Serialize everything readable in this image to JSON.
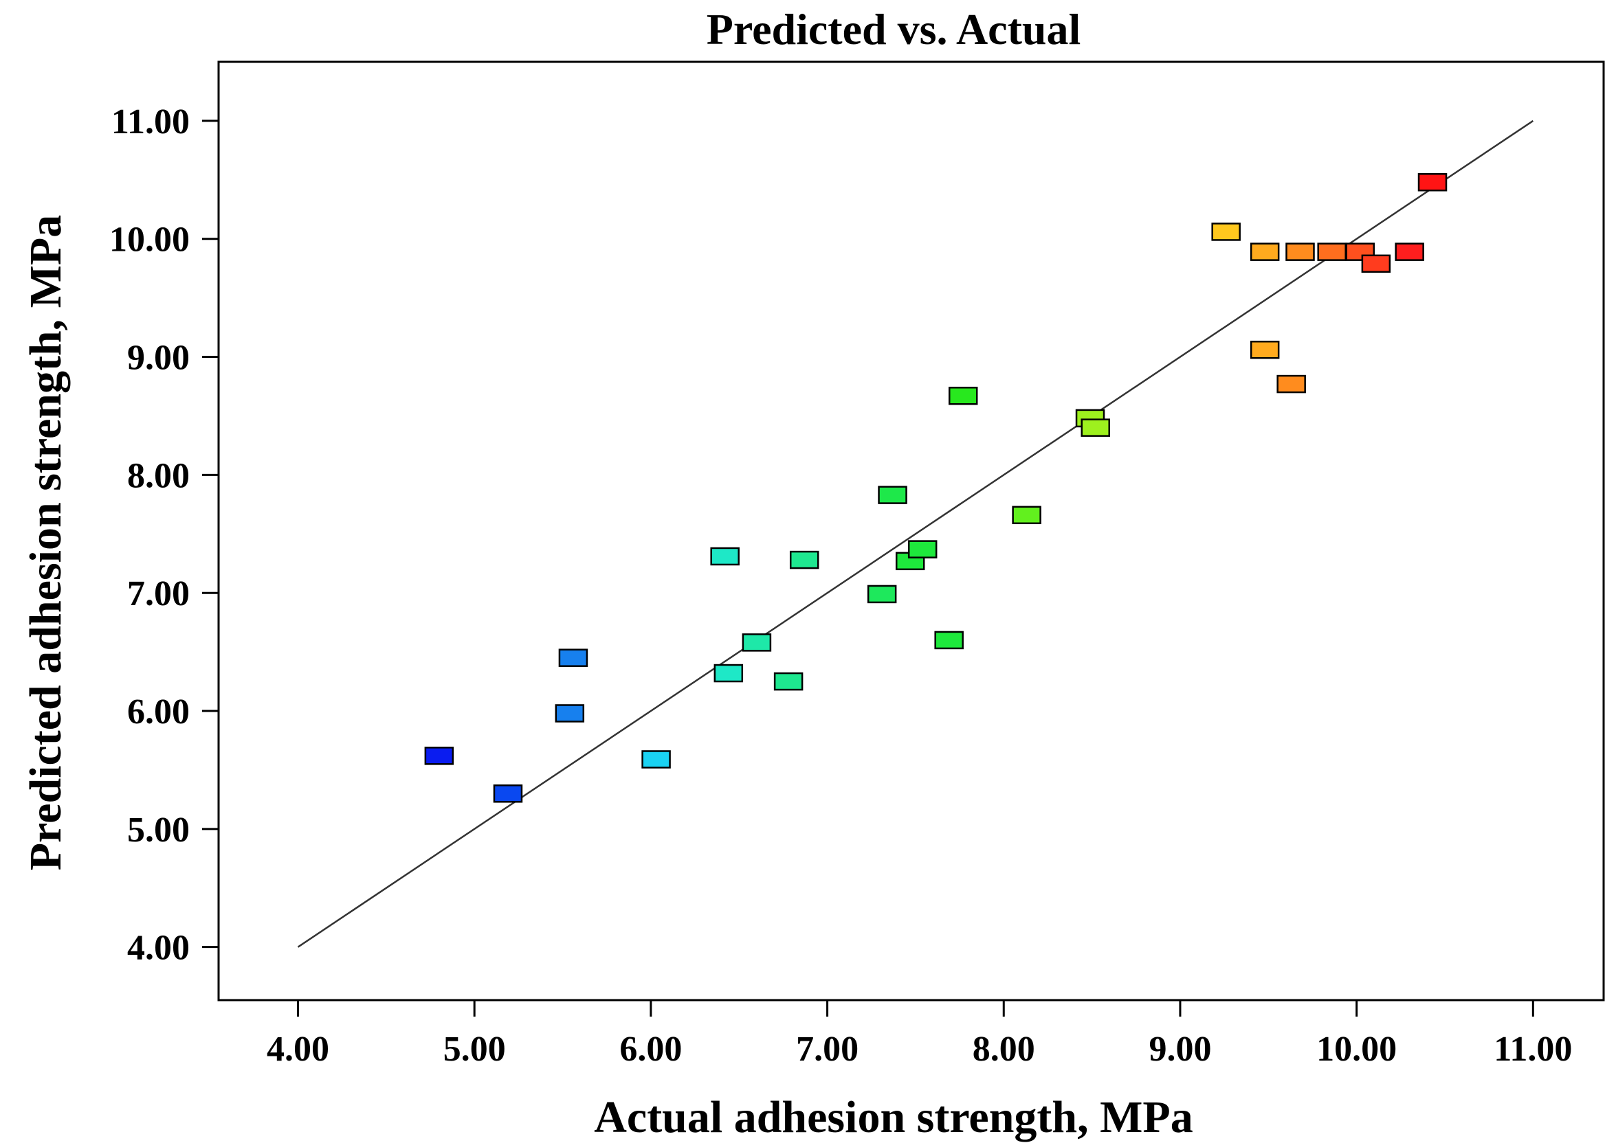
{
  "chart_data": {
    "type": "scatter",
    "title": "Predicted vs. Actual",
    "xlabel": "Actual adhesion strength, MPa",
    "ylabel": "Predicted adhesion strength, MPa",
    "xlim": [
      3.55,
      11.4
    ],
    "ylim": [
      3.55,
      11.5
    ],
    "xticks": [
      "4.00",
      "5.00",
      "6.00",
      "7.00",
      "8.00",
      "9.00",
      "10.00",
      "11.00"
    ],
    "yticks": [
      "4.00",
      "5.00",
      "6.00",
      "7.00",
      "8.00",
      "9.00",
      "10.00",
      "11.00"
    ],
    "reference_line": {
      "from": [
        4.0,
        4.0
      ],
      "to": [
        11.0,
        11.0
      ]
    },
    "points": [
      {
        "x": 4.8,
        "y": 5.62,
        "color": "#0a1cf0"
      },
      {
        "x": 5.19,
        "y": 5.3,
        "color": "#0a48f0"
      },
      {
        "x": 5.54,
        "y": 5.98,
        "color": "#1780ee"
      },
      {
        "x": 5.56,
        "y": 6.45,
        "color": "#1780ee"
      },
      {
        "x": 6.03,
        "y": 5.59,
        "color": "#1ad2f2"
      },
      {
        "x": 6.42,
        "y": 7.31,
        "color": "#1ee8c7"
      },
      {
        "x": 6.44,
        "y": 6.32,
        "color": "#1ee8c7"
      },
      {
        "x": 6.6,
        "y": 6.58,
        "color": "#1ee8a8"
      },
      {
        "x": 6.78,
        "y": 6.25,
        "color": "#1ee890"
      },
      {
        "x": 6.87,
        "y": 7.28,
        "color": "#1ee890"
      },
      {
        "x": 7.31,
        "y": 6.99,
        "color": "#1ee85c"
      },
      {
        "x": 7.37,
        "y": 7.83,
        "color": "#1ee84a"
      },
      {
        "x": 7.47,
        "y": 7.27,
        "color": "#1ee83c"
      },
      {
        "x": 7.54,
        "y": 7.37,
        "color": "#1ee83c"
      },
      {
        "x": 7.69,
        "y": 6.6,
        "color": "#1ee83c"
      },
      {
        "x": 7.77,
        "y": 8.67,
        "color": "#28e81e"
      },
      {
        "x": 8.13,
        "y": 7.66,
        "color": "#62f01e"
      },
      {
        "x": 8.49,
        "y": 8.48,
        "color": "#9ef01e"
      },
      {
        "x": 8.52,
        "y": 8.4,
        "color": "#9ef01e"
      },
      {
        "x": 9.26,
        "y": 10.06,
        "color": "#ffc81e"
      },
      {
        "x": 9.48,
        "y": 9.89,
        "color": "#ffaa1e"
      },
      {
        "x": 9.48,
        "y": 9.06,
        "color": "#ffaa1e"
      },
      {
        "x": 9.63,
        "y": 8.77,
        "color": "#ff8c1e"
      },
      {
        "x": 9.68,
        "y": 9.89,
        "color": "#ff8c1e"
      },
      {
        "x": 9.86,
        "y": 9.89,
        "color": "#ff6e1e"
      },
      {
        "x": 10.02,
        "y": 9.89,
        "color": "#ff501e"
      },
      {
        "x": 10.11,
        "y": 9.79,
        "color": "#ff3c1e"
      },
      {
        "x": 10.3,
        "y": 9.89,
        "color": "#ff1e1e"
      },
      {
        "x": 10.43,
        "y": 10.48,
        "color": "#ff1414"
      }
    ]
  }
}
